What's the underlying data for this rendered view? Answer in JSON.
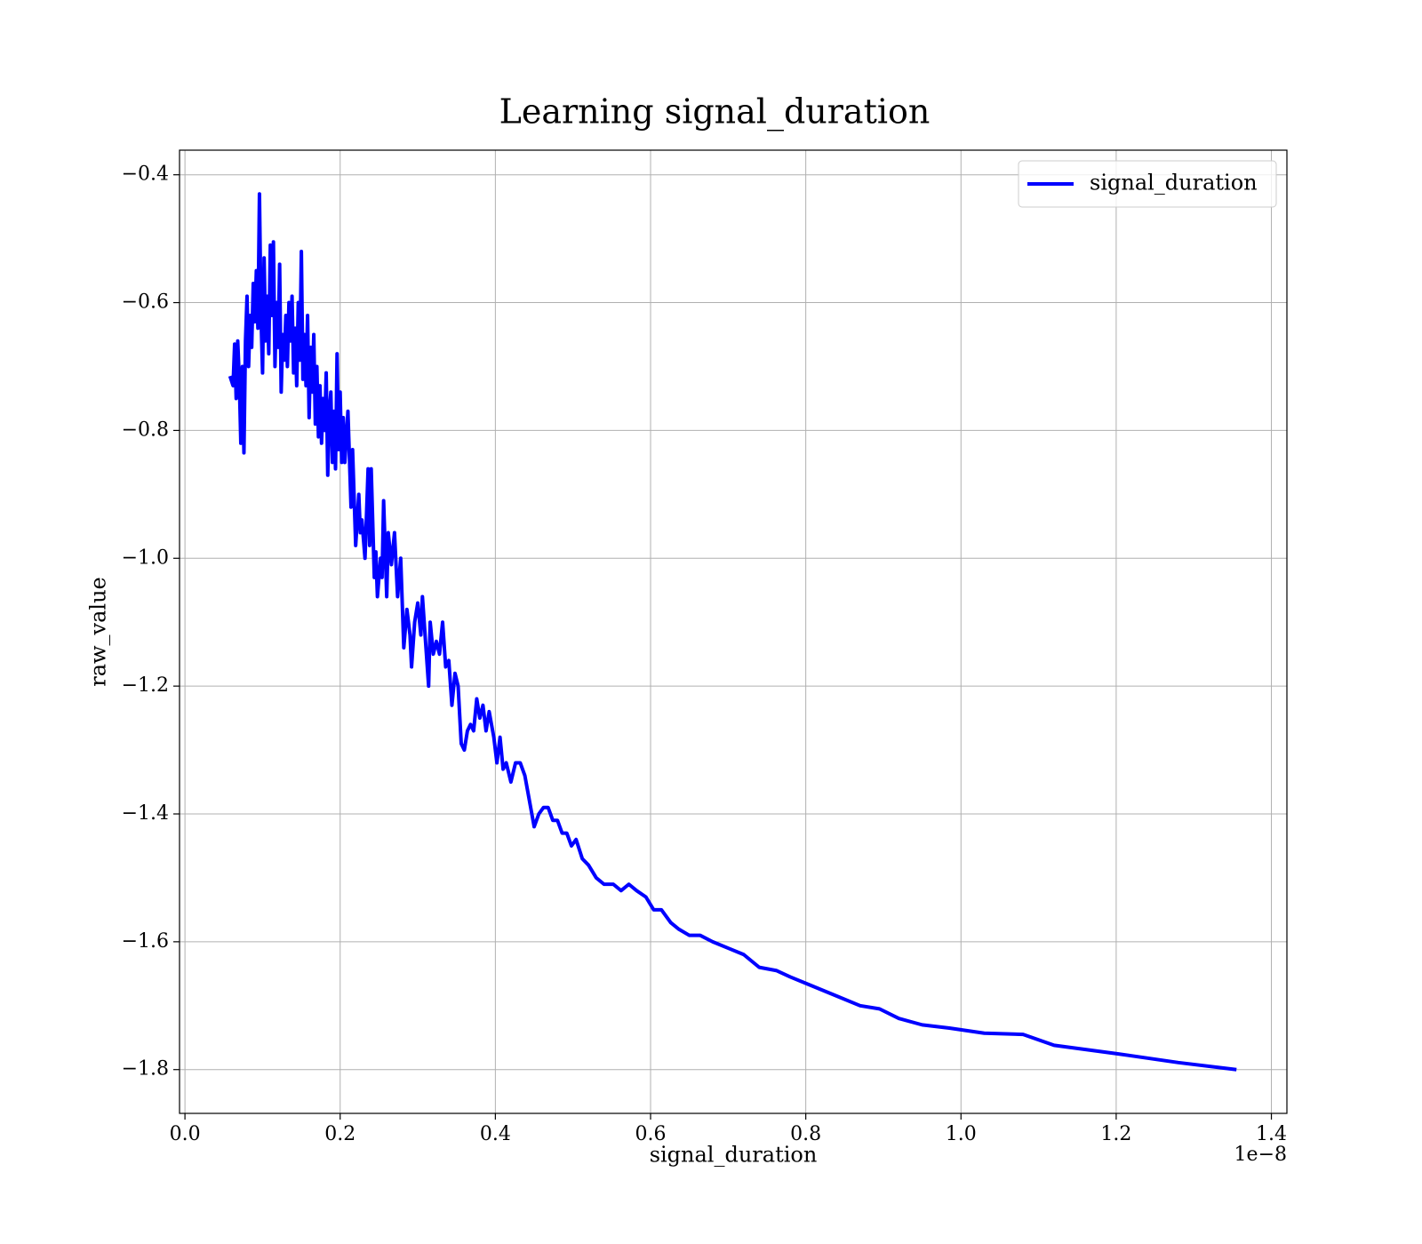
{
  "chart_data": {
    "type": "line",
    "title": "Learning signal_duration",
    "x_label": "signal_duration",
    "y_label": "raw_value",
    "x_offset_label": "1e−8",
    "x": [
      0.058,
      0.062,
      0.064,
      0.066,
      0.068,
      0.07,
      0.072,
      0.074,
      0.076,
      0.078,
      0.08,
      0.082,
      0.084,
      0.086,
      0.088,
      0.09,
      0.092,
      0.094,
      0.096,
      0.098,
      0.1,
      0.102,
      0.104,
      0.106,
      0.108,
      0.11,
      0.112,
      0.114,
      0.116,
      0.118,
      0.12,
      0.122,
      0.124,
      0.126,
      0.128,
      0.13,
      0.132,
      0.134,
      0.136,
      0.138,
      0.14,
      0.142,
      0.144,
      0.146,
      0.148,
      0.15,
      0.152,
      0.154,
      0.156,
      0.158,
      0.16,
      0.162,
      0.164,
      0.166,
      0.168,
      0.17,
      0.172,
      0.174,
      0.176,
      0.178,
      0.18,
      0.182,
      0.184,
      0.186,
      0.188,
      0.19,
      0.192,
      0.194,
      0.196,
      0.198,
      0.2,
      0.202,
      0.204,
      0.206,
      0.21,
      0.214,
      0.216,
      0.22,
      0.224,
      0.226,
      0.228,
      0.232,
      0.236,
      0.238,
      0.24,
      0.244,
      0.246,
      0.248,
      0.252,
      0.254,
      0.256,
      0.26,
      0.262,
      0.266,
      0.27,
      0.274,
      0.278,
      0.282,
      0.286,
      0.29,
      0.292,
      0.296,
      0.3,
      0.304,
      0.306,
      0.31,
      0.314,
      0.316,
      0.32,
      0.324,
      0.328,
      0.332,
      0.336,
      0.34,
      0.344,
      0.348,
      0.352,
      0.356,
      0.36,
      0.364,
      0.368,
      0.372,
      0.376,
      0.38,
      0.384,
      0.388,
      0.392,
      0.398,
      0.402,
      0.406,
      0.41,
      0.414,
      0.42,
      0.426,
      0.432,
      0.438,
      0.444,
      0.45,
      0.456,
      0.462,
      0.468,
      0.474,
      0.48,
      0.486,
      0.492,
      0.498,
      0.504,
      0.512,
      0.52,
      0.53,
      0.54,
      0.552,
      0.562,
      0.572,
      0.582,
      0.594,
      0.604,
      0.614,
      0.626,
      0.636,
      0.65,
      0.664,
      0.68,
      0.7,
      0.72,
      0.74,
      0.762,
      0.78,
      0.8,
      0.84,
      0.87,
      0.895,
      0.92,
      0.95,
      0.985,
      1.03,
      1.08,
      1.12,
      1.2,
      1.28,
      1.355
    ],
    "series": [
      {
        "name": "signal_duration",
        "color": "#0000ff",
        "values": [
          -0.715,
          -0.73,
          -0.665,
          -0.75,
          -0.66,
          -0.72,
          -0.82,
          -0.7,
          -0.835,
          -0.66,
          -0.59,
          -0.7,
          -0.62,
          -0.67,
          -0.57,
          -0.63,
          -0.55,
          -0.64,
          -0.43,
          -0.62,
          -0.71,
          -0.53,
          -0.66,
          -0.59,
          -0.68,
          -0.51,
          -0.62,
          -0.505,
          -0.7,
          -0.6,
          -0.67,
          -0.54,
          -0.74,
          -0.65,
          -0.69,
          -0.62,
          -0.7,
          -0.6,
          -0.66,
          -0.59,
          -0.71,
          -0.64,
          -0.73,
          -0.6,
          -0.69,
          -0.52,
          -0.72,
          -0.65,
          -0.73,
          -0.62,
          -0.78,
          -0.67,
          -0.74,
          -0.65,
          -0.79,
          -0.7,
          -0.81,
          -0.73,
          -0.82,
          -0.75,
          -0.8,
          -0.71,
          -0.87,
          -0.77,
          -0.74,
          -0.85,
          -0.77,
          -0.86,
          -0.68,
          -0.83,
          -0.74,
          -0.85,
          -0.78,
          -0.85,
          -0.77,
          -0.92,
          -0.83,
          -0.98,
          -0.9,
          -0.96,
          -0.94,
          -1.0,
          -0.86,
          -0.98,
          -0.86,
          -1.03,
          -0.99,
          -1.06,
          -1.0,
          -1.03,
          -0.91,
          -1.06,
          -0.96,
          -1.01,
          -0.96,
          -1.06,
          -1.0,
          -1.14,
          -1.08,
          -1.12,
          -1.17,
          -1.1,
          -1.07,
          -1.12,
          -1.06,
          -1.13,
          -1.2,
          -1.1,
          -1.15,
          -1.13,
          -1.15,
          -1.1,
          -1.17,
          -1.16,
          -1.23,
          -1.18,
          -1.2,
          -1.29,
          -1.3,
          -1.27,
          -1.26,
          -1.27,
          -1.22,
          -1.25,
          -1.23,
          -1.27,
          -1.24,
          -1.28,
          -1.32,
          -1.28,
          -1.33,
          -1.32,
          -1.35,
          -1.32,
          -1.32,
          -1.34,
          -1.38,
          -1.42,
          -1.4,
          -1.39,
          -1.39,
          -1.41,
          -1.41,
          -1.43,
          -1.43,
          -1.45,
          -1.44,
          -1.47,
          -1.48,
          -1.5,
          -1.51,
          -1.51,
          -1.52,
          -1.51,
          -1.52,
          -1.53,
          -1.55,
          -1.55,
          -1.57,
          -1.58,
          -1.59,
          -1.59,
          -1.6,
          -1.61,
          -1.62,
          -1.64,
          -1.645,
          -1.655,
          -1.665,
          -1.685,
          -1.7,
          -1.705,
          -1.72,
          -1.73,
          -1.735,
          -1.743,
          -1.745,
          -1.762,
          -1.775,
          -1.789,
          -1.8
        ]
      }
    ],
    "xlim": [
      -0.007,
      1.42
    ],
    "ylim": [
      -1.8685,
      -0.3615
    ],
    "xticks": [
      {
        "value": 0,
        "label": "0.0"
      },
      0.2,
      0.4,
      0.6,
      0.8,
      {
        "value": 1,
        "label": "1.0"
      },
      1.2,
      1.4
    ],
    "yticks": [
      {
        "value": -1.8,
        "label": "−1.8"
      },
      {
        "value": -1.6,
        "label": "−1.6"
      },
      {
        "value": -1.4,
        "label": "−1.4"
      },
      {
        "value": -1.2,
        "label": "−1.2"
      },
      {
        "value": -1,
        "label": "−1.0"
      },
      {
        "value": -0.8,
        "label": "−0.8"
      },
      {
        "value": -0.6,
        "label": "−0.6"
      },
      {
        "value": -0.4,
        "label": "−0.4"
      }
    ],
    "grid": true,
    "legend": "upper right"
  }
}
